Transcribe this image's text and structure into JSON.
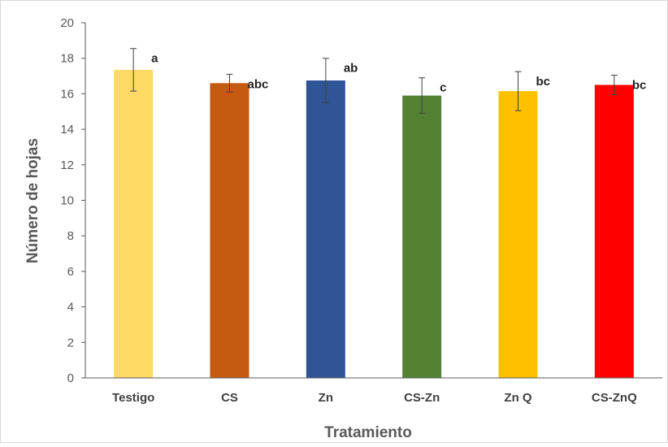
{
  "chart_data": {
    "type": "bar",
    "title": "",
    "xlabel": "Tratamiento",
    "ylabel": "Número de hojas",
    "ylim": [
      0,
      20
    ],
    "yticks": [
      0,
      2,
      4,
      6,
      8,
      10,
      12,
      14,
      16,
      18,
      20
    ],
    "grid": false,
    "legend": "none",
    "categories": [
      "Testigo",
      "CS",
      "Zn",
      "CS-Zn",
      "Zn Q",
      "CS-ZnQ"
    ],
    "values": [
      17.35,
      16.6,
      16.75,
      15.9,
      16.15,
      16.5
    ],
    "errors": [
      1.2,
      0.5,
      1.25,
      1.0,
      1.1,
      0.55
    ],
    "significance": [
      "a",
      "abc",
      "ab",
      "c",
      "bc",
      "bc"
    ],
    "colors": [
      "#FFD966",
      "#C55A11",
      "#2F5597",
      "#548235",
      "#FFC000",
      "#FF0000"
    ]
  }
}
